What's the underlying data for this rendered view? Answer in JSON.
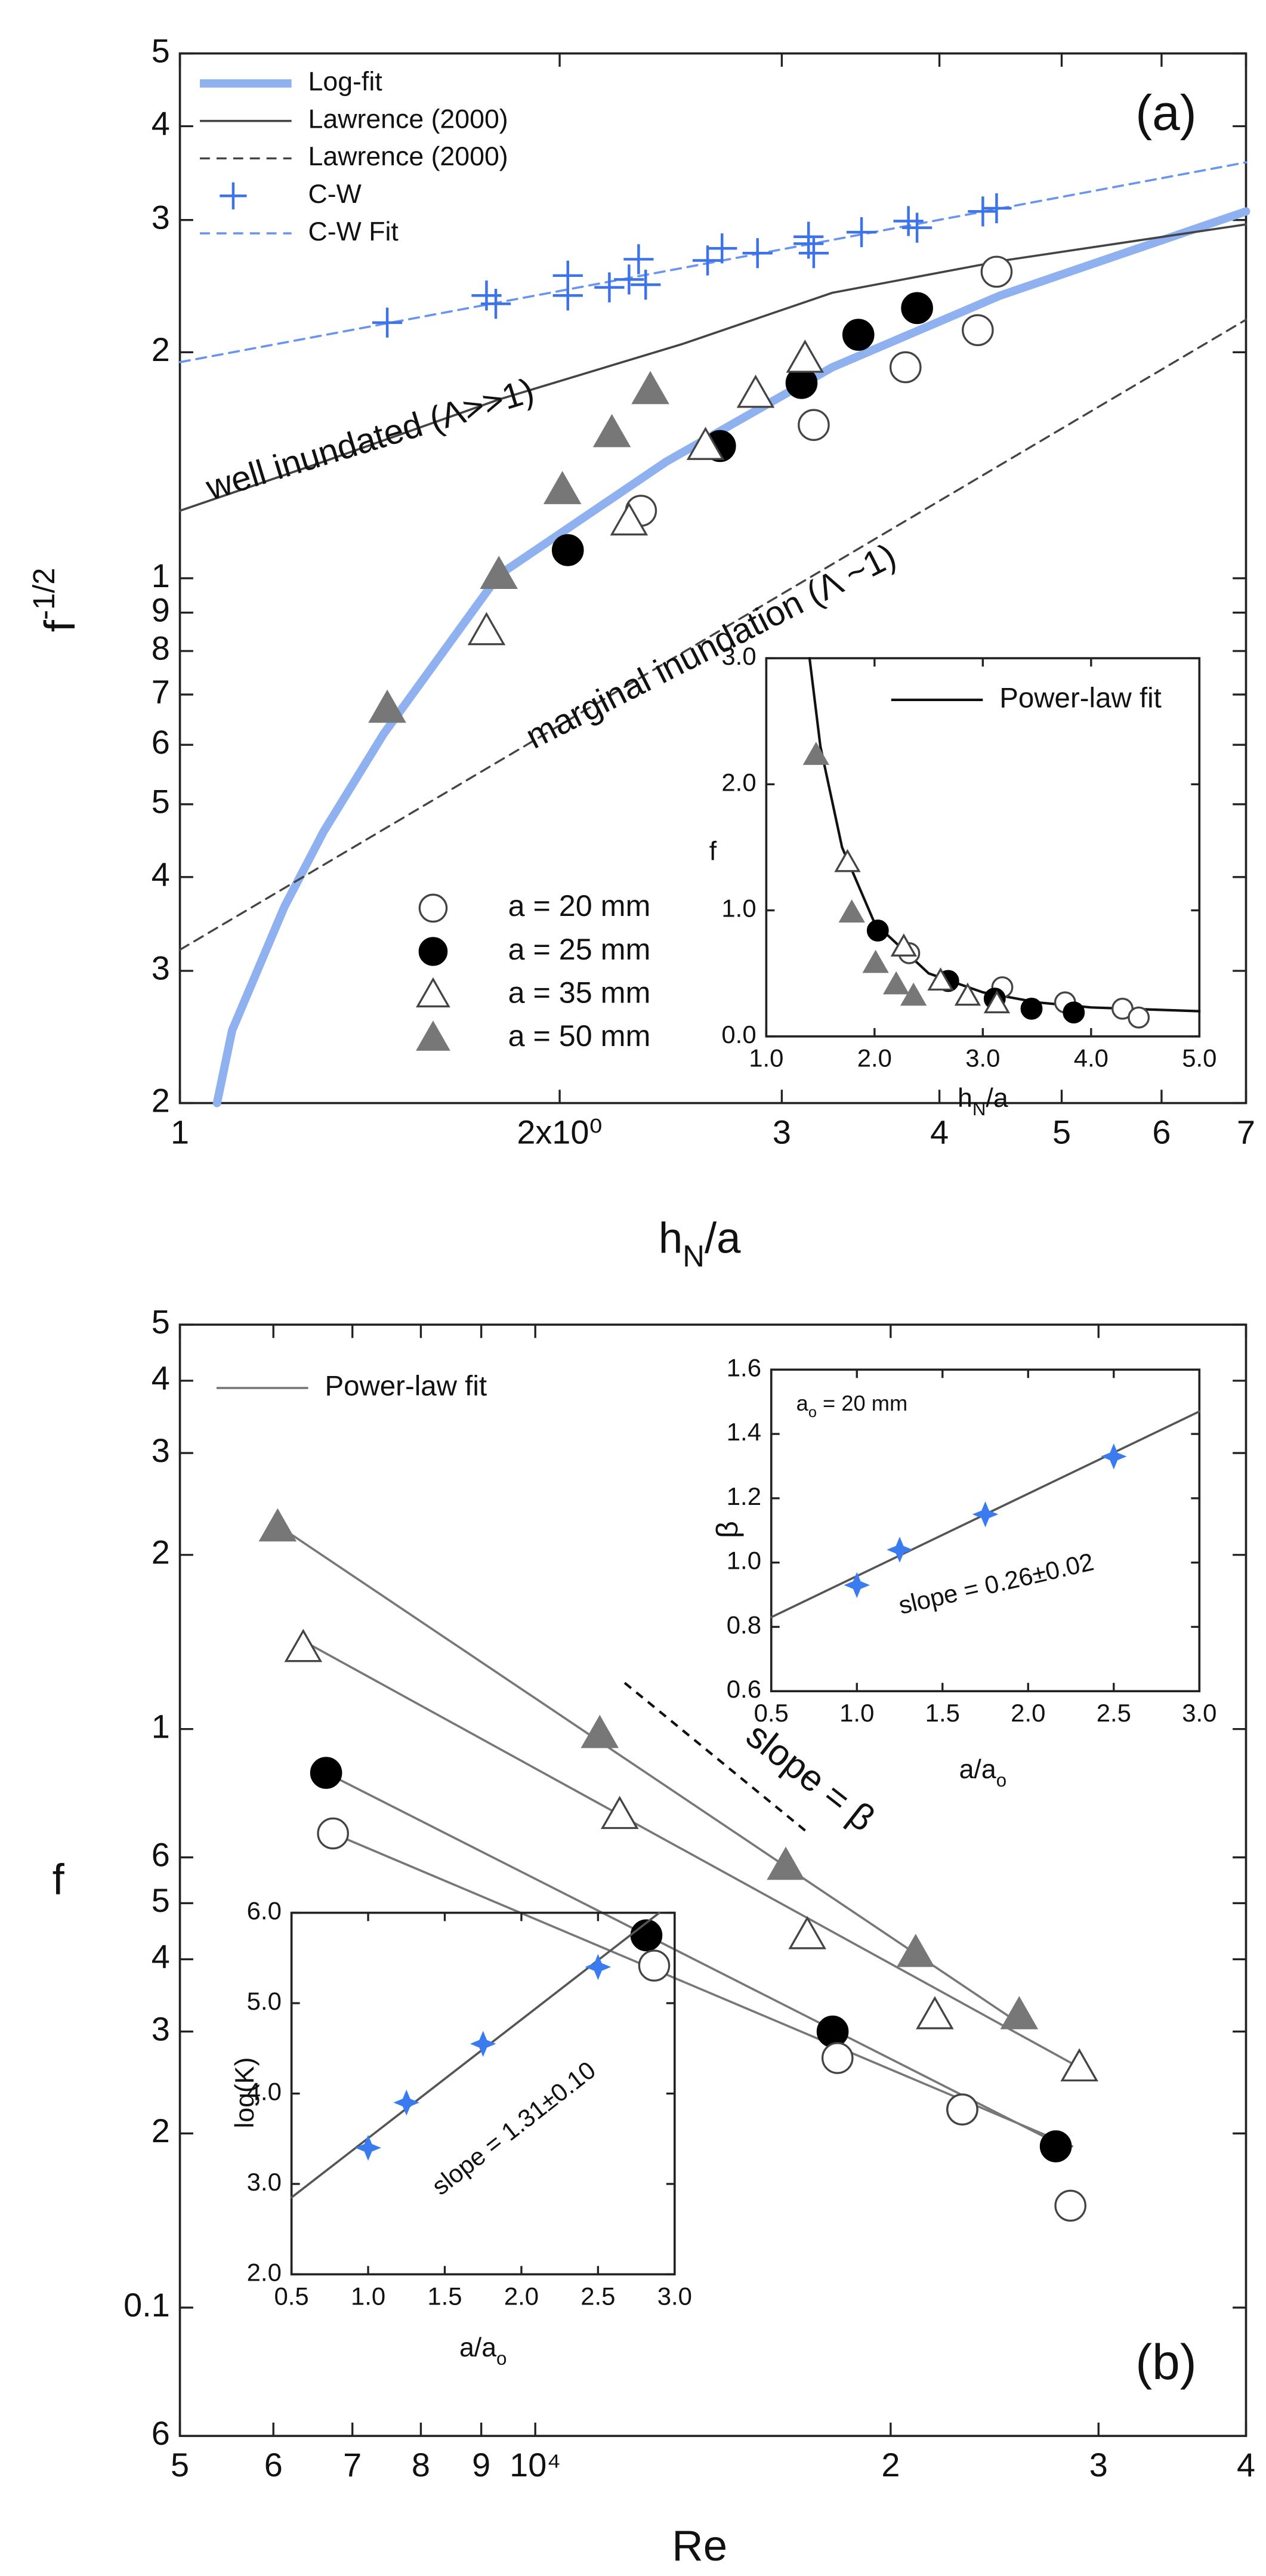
{
  "chart_data": [
    {
      "type": "scatter",
      "xscale": "log",
      "yscale": "log",
      "xlim": [
        1,
        7
      ],
      "ylim": [
        0.2,
        5
      ],
      "xticks": [
        1,
        {
          "value": 2,
          "label": "2x10⁰"
        },
        3,
        4,
        5,
        6,
        7
      ],
      "yticks": [
        5,
        4,
        3,
        2,
        1,
        {
          "value": 0.9,
          "label": "9"
        },
        {
          "value": 0.8,
          "label": "8"
        },
        {
          "value": 0.7,
          "label": "7"
        },
        {
          "value": 0.6,
          "label": "6"
        },
        {
          "value": 0.5,
          "label": "5"
        },
        {
          "value": 0.4,
          "label": "4"
        },
        {
          "value": 0.3,
          "label": "3"
        },
        {
          "value": 0.2,
          "label": "2"
        }
      ],
      "xlabel": {
        "text": "h",
        "sub": "N",
        "after": "/a"
      },
      "ylabel": {
        "text": "f",
        "sup": "-1/2"
      },
      "annotations": [
        {
          "text": "(a)",
          "color": "#111111"
        },
        {
          "text": "well inundated (Λ>>1)",
          "color": "#4a7fe0"
        },
        {
          "text": "marginal inundation (Λ ~1)",
          "color": "#4a7fe0"
        }
      ],
      "series": [
        {
          "name": "Log-fit",
          "color": "#8fb1f0",
          "style": "line",
          "width": 5,
          "legend": "upper left",
          "x": [
            1.07,
            1.1,
            1.21,
            1.3,
            1.45,
            1.79,
            2.43,
            3.29,
            4.47,
            7
          ],
          "values": [
            0.2,
            0.25,
            0.365,
            0.46,
            0.62,
            1.01,
            1.43,
            1.91,
            2.38,
            3.08
          ]
        },
        {
          "name": "Lawrence (2000)",
          "color": "#444444",
          "style": "line",
          "width": 1.3,
          "legend": "upper left",
          "x": [
            1,
            1.3,
            1.79,
            2.5,
            3.29,
            4.5,
            7
          ],
          "values": [
            1.23,
            1.43,
            1.73,
            2.05,
            2.4,
            2.65,
            2.96
          ]
        },
        {
          "name": "Lawrence (2000)",
          "color": "#444444",
          "style": "dashed",
          "width": 1.2,
          "legend": "upper left",
          "x": [
            1,
            7
          ],
          "values": [
            0.32,
            2.21
          ]
        },
        {
          "name": "C-W",
          "color": "#3d73e8",
          "style": "marker",
          "marker": "plus",
          "legend": "upper left",
          "x": [
            1.46,
            1.75,
            1.78,
            2.03,
            2.03,
            2.19,
            2.27,
            2.31,
            2.34,
            2.62,
            2.69,
            2.87,
            3.15,
            3.15,
            3.18,
            3.47,
            3.78,
            3.84,
            4.33,
            4.44
          ],
          "values": [
            2.19,
            2.38,
            2.32,
            2.53,
            2.38,
            2.44,
            2.5,
            2.66,
            2.46,
            2.65,
            2.75,
            2.71,
            2.85,
            2.79,
            2.71,
            2.89,
            2.99,
            2.93,
            3.08,
            3.11
          ]
        },
        {
          "name": "C-W Fit",
          "color": "#6a95ee",
          "style": "dashed",
          "width": 1.3,
          "legend": "upper left",
          "x": [
            1,
            7
          ],
          "values": [
            1.94,
            3.58
          ]
        },
        {
          "name": "a = 20 mm",
          "color": "#444444",
          "style": "marker",
          "marker": "circle-open",
          "legend": "lower left",
          "x": [
            2.32,
            3.18,
            3.76,
            4.29,
            4.44
          ],
          "values": [
            1.23,
            1.6,
            1.91,
            2.14,
            2.56
          ]
        },
        {
          "name": "a = 25 mm",
          "color": "#000000",
          "style": "marker",
          "marker": "circle",
          "legend": "lower left",
          "x": [
            2.03,
            2.68,
            3.11,
            3.45,
            3.84
          ],
          "values": [
            1.09,
            1.5,
            1.82,
            2.11,
            2.29
          ]
        },
        {
          "name": "a = 35 mm",
          "color": "#444444",
          "style": "marker",
          "marker": "triangle-open",
          "legend": "lower left",
          "x": [
            1.75,
            2.27,
            2.61,
            2.86,
            3.13
          ],
          "values": [
            0.85,
            1.19,
            1.5,
            1.76,
            1.96
          ]
        },
        {
          "name": "a = 50 mm",
          "color": "#777777",
          "style": "marker",
          "marker": "triangle",
          "legend": "lower left",
          "x": [
            1.46,
            1.79,
            2.01,
            2.2,
            2.36
          ],
          "values": [
            0.67,
            1.01,
            1.31,
            1.56,
            1.78
          ]
        }
      ]
    },
    {
      "type": "scatter",
      "xscale": "linear",
      "yscale": "linear",
      "xlim": [
        1,
        5
      ],
      "ylim": [
        0,
        3
      ],
      "xticks": [
        {
          "value": 1,
          "label": "1.0"
        },
        {
          "value": 2,
          "label": "2.0"
        },
        {
          "value": 3,
          "label": "3.0"
        },
        {
          "value": 4,
          "label": "4.0"
        },
        {
          "value": 5,
          "label": "5.0"
        }
      ],
      "yticks": [
        {
          "value": 0,
          "label": "0.0"
        },
        {
          "value": 1,
          "label": "1.0"
        },
        {
          "value": 2,
          "label": "2.0"
        },
        {
          "value": 3,
          "label": "3.0"
        }
      ],
      "xlabel": {
        "text": "h",
        "sub": "N",
        "after": "/a"
      },
      "ylabel": {
        "text": "f"
      },
      "series": [
        {
          "name": "Power-law fit",
          "color": "#111111",
          "style": "line",
          "width": 1.5,
          "legend": "upper right",
          "x": [
            1.4,
            1.5,
            1.7,
            2,
            2.5,
            3,
            3.5,
            4,
            5
          ],
          "values": [
            3.0,
            2.3,
            1.5,
            0.9,
            0.5,
            0.35,
            0.27,
            0.23,
            0.2
          ]
        },
        {
          "color": "#444444",
          "style": "marker",
          "marker": "circle-open",
          "x": [
            2.32,
            3.18,
            3.76,
            4.29,
            4.44
          ],
          "values": [
            0.66,
            0.39,
            0.27,
            0.22,
            0.15
          ]
        },
        {
          "color": "#000000",
          "style": "marker",
          "marker": "circle",
          "x": [
            2.03,
            2.68,
            3.11,
            3.45,
            3.84
          ],
          "values": [
            0.84,
            0.44,
            0.3,
            0.22,
            0.19
          ]
        },
        {
          "color": "#444444",
          "style": "marker",
          "marker": "triangle-open",
          "x": [
            1.75,
            2.27,
            2.61,
            2.86,
            3.13
          ],
          "values": [
            1.38,
            0.71,
            0.44,
            0.32,
            0.26
          ]
        },
        {
          "color": "#777777",
          "style": "marker",
          "marker": "triangle",
          "x": [
            1.46,
            1.79,
            2.01,
            2.2,
            2.36
          ],
          "values": [
            2.23,
            0.98,
            0.58,
            0.41,
            0.32
          ]
        }
      ]
    },
    {
      "type": "scatter",
      "xscale": "log",
      "yscale": "log",
      "xlim": [
        5000,
        40000
      ],
      "ylim": [
        0.06,
        5
      ],
      "xticks": [
        {
          "value": 5000,
          "label": "5"
        },
        {
          "value": 6000,
          "label": "6"
        },
        {
          "value": 7000,
          "label": "7"
        },
        {
          "value": 8000,
          "label": "8"
        },
        {
          "value": 9000,
          "label": "9"
        },
        {
          "value": 10000,
          "label": "10⁴"
        },
        {
          "value": 20000,
          "label": "2"
        },
        {
          "value": 30000,
          "label": "3"
        },
        {
          "value": 40000,
          "label": "4"
        }
      ],
      "yticks": [
        5,
        4,
        3,
        2,
        1,
        {
          "value": 0.6,
          "label": "6"
        },
        {
          "value": 0.5,
          "label": "5"
        },
        {
          "value": 0.4,
          "label": "4"
        },
        {
          "value": 0.3,
          "label": "3"
        },
        {
          "value": 0.2,
          "label": "2"
        },
        0.1,
        {
          "value": 0.06,
          "label": "6"
        }
      ],
      "xlabel": {
        "text": "Re"
      },
      "ylabel": {
        "text": "f"
      },
      "annotations": [
        {
          "text": "(b)",
          "color": "#111111"
        },
        {
          "text": "slope = β",
          "color": "#4a7fe0"
        }
      ],
      "series": [
        {
          "name": "Power-law fit",
          "color": "#777777",
          "style": "line",
          "width": 1.3,
          "legend": "upper left",
          "x": [
            6050,
            25700
          ],
          "values": [
            2.25,
            0.31
          ]
        },
        {
          "color": "#777777",
          "style": "line",
          "width": 1.3,
          "x": [
            6360,
            28900
          ],
          "values": [
            1.42,
            0.26
          ]
        },
        {
          "color": "#777777",
          "style": "line",
          "width": 1.3,
          "x": [
            6650,
            28000
          ],
          "values": [
            0.84,
            0.19
          ]
        },
        {
          "color": "#777777",
          "style": "line",
          "width": 1.3,
          "x": [
            6740,
            28500
          ],
          "values": [
            0.66,
            0.19
          ]
        },
        {
          "color": "#777777",
          "style": "marker",
          "marker": "triangle",
          "x": [
            6050,
            11340,
            16300,
            21000,
            25700
          ],
          "values": [
            2.23,
            0.98,
            0.58,
            0.41,
            0.32
          ]
        },
        {
          "color": "#444444",
          "style": "marker",
          "marker": "triangle-open",
          "x": [
            6360,
            11790,
            17000,
            21800,
            28900
          ],
          "values": [
            1.38,
            0.71,
            0.44,
            0.32,
            0.26
          ]
        },
        {
          "color": "#000000",
          "style": "marker",
          "marker": "circle",
          "x": [
            6650,
            12420,
            17860,
            23000,
            27600
          ],
          "values": [
            0.84,
            0.44,
            0.3,
            0.22,
            0.19
          ]
        },
        {
          "color": "#444444",
          "style": "marker",
          "marker": "circle-open",
          "x": [
            6740,
            12610,
            18030,
            23000,
            28400
          ],
          "values": [
            0.66,
            0.39,
            0.27,
            0.22,
            0.15
          ]
        }
      ]
    },
    {
      "type": "scatter",
      "xscale": "linear",
      "yscale": "linear",
      "xlim": [
        0.5,
        3.0
      ],
      "ylim": [
        0.6,
        1.6
      ],
      "xticks": [
        0.5,
        {
          "value": 1,
          "label": "1.0"
        },
        1.5,
        {
          "value": 2,
          "label": "2.0"
        },
        2.5,
        {
          "value": 3,
          "label": "3.0"
        }
      ],
      "yticks": [
        0.6,
        0.8,
        {
          "value": 1,
          "label": "1.0"
        },
        1.2,
        1.4,
        1.6
      ],
      "xlabel": {
        "text": "a/a",
        "sub": "o"
      },
      "ylabel": {
        "text": "β"
      },
      "annotations": [
        {
          "text": "a",
          "sub": "o",
          "after": " = 20 mm",
          "color": "#111111"
        },
        {
          "text": "slope = 0.26±0.02",
          "color": "#111111"
        }
      ],
      "series": [
        {
          "color": "#555555",
          "style": "line",
          "width": 1.3,
          "x": [
            0.5,
            3.0
          ],
          "values": [
            0.83,
            1.47
          ]
        },
        {
          "color": "#3a7bef",
          "style": "marker",
          "marker": "star",
          "x": [
            1.0,
            1.25,
            1.75,
            2.5
          ],
          "values": [
            0.93,
            1.04,
            1.15,
            1.33
          ]
        }
      ]
    },
    {
      "type": "scatter",
      "xscale": "linear",
      "yscale": "linear",
      "xlim": [
        0.5,
        3.0
      ],
      "ylim": [
        2.0,
        6.0
      ],
      "xticks": [
        0.5,
        {
          "value": 1,
          "label": "1.0"
        },
        1.5,
        {
          "value": 2,
          "label": "2.0"
        },
        2.5,
        {
          "value": 3,
          "label": "3.0"
        }
      ],
      "yticks": [
        {
          "value": 2,
          "label": "2.0"
        },
        {
          "value": 3,
          "label": "3.0"
        },
        {
          "value": 4,
          "label": "4.0"
        },
        {
          "value": 5,
          "label": "5.0"
        },
        {
          "value": 6,
          "label": "6.0"
        }
      ],
      "xlabel": {
        "text": "a/a",
        "sub": "o"
      },
      "ylabel": {
        "text": "log(K)"
      },
      "annotations": [
        {
          "text": "slope = 1.31±0.10",
          "color": "#111111"
        }
      ],
      "series": [
        {
          "color": "#555555",
          "style": "line",
          "width": 1.3,
          "x": [
            0.5,
            2.9
          ],
          "values": [
            2.85,
            6.0
          ]
        },
        {
          "color": "#3a7bef",
          "style": "marker",
          "marker": "star",
          "x": [
            1.0,
            1.25,
            1.75,
            2.5
          ],
          "values": [
            3.4,
            3.9,
            4.55,
            5.4
          ]
        }
      ]
    }
  ]
}
